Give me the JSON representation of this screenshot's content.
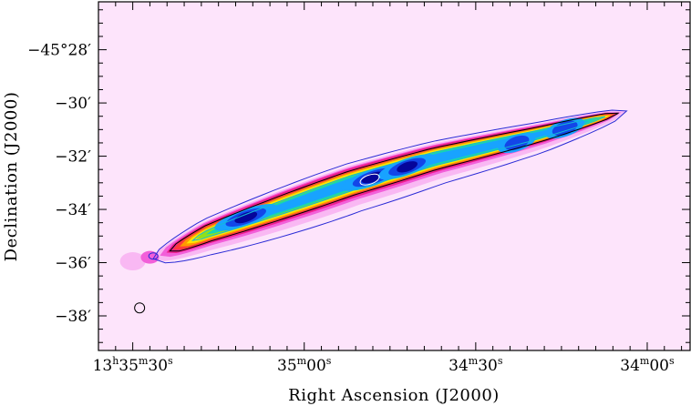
{
  "chart_data": {
    "type": "heatmap",
    "xlabel": "Right Ascension (J2000)",
    "ylabel": "Declination (J2000)",
    "x_ticks": [
      {
        "h": "13",
        "m": "35",
        "s": "30",
        "pre": "13",
        "pre_unit": "h",
        "mid": "35",
        "mid_unit": "m",
        "sec": "30",
        "sec_unit": "s"
      },
      {
        "m": "35",
        "s": "00",
        "pre": "",
        "pre_unit": "",
        "mid": "35",
        "mid_unit": "m",
        "sec": "00",
        "sec_unit": "s"
      },
      {
        "m": "34",
        "s": "30",
        "pre": "",
        "pre_unit": "",
        "mid": "34",
        "mid_unit": "m",
        "sec": "30",
        "sec_unit": "s"
      },
      {
        "m": "34",
        "s": "00",
        "pre": "",
        "pre_unit": "",
        "mid": "34",
        "mid_unit": "m",
        "sec": "00",
        "sec_unit": "s"
      }
    ],
    "y_ticks": [
      "−45°28′",
      "−30′",
      "−32′",
      "−34′",
      "−36′",
      "−38′"
    ],
    "ra_ticks_seconds": [
      35.5,
      35.0,
      34.5,
      34.0
    ],
    "dec_ticks_arcmin": [
      -28,
      -30,
      -32,
      -34,
      -36,
      -38
    ],
    "ra_range_seconds": [
      35.6,
      33.875
    ],
    "dec_range_arcmin": [
      -26.2,
      -39.3
    ],
    "source_ridge": [
      {
        "ra": 35.44,
        "dec": -35.85
      },
      {
        "ra": 35.28,
        "dec": -34.9
      },
      {
        "ra": 35.06,
        "dec": -33.9
      },
      {
        "ra": 34.86,
        "dec": -33.0
      },
      {
        "ra": 34.62,
        "dec": -32.1
      },
      {
        "ra": 34.32,
        "dec": -31.2
      },
      {
        "ra": 34.06,
        "dec": -30.3
      }
    ],
    "intensity_peaks": [
      {
        "ra": 35.17,
        "dec": -34.3,
        "level": 1.0
      },
      {
        "ra": 34.8,
        "dec": -32.8,
        "level": 1.0
      },
      {
        "ra": 34.7,
        "dec": -32.4,
        "level": 0.92
      },
      {
        "ra": 34.38,
        "dec": -31.5,
        "level": 0.6
      },
      {
        "ra": 34.24,
        "dec": -30.95,
        "level": 0.62
      }
    ],
    "beam": {
      "ra": 35.48,
      "dec": -37.7
    },
    "colormap": [
      "#fce6fb",
      "#f9b8f3",
      "#f25fd9",
      "#ee1f8e",
      "#ff3b3b",
      "#ff9a00",
      "#ffe600",
      "#8ee21b",
      "#16d6b0",
      "#18a3ff",
      "#1346e8",
      "#05059a"
    ],
    "background_color": "#fde4fb",
    "contour_colors": [
      "#2b2bd6",
      "#000000",
      "#14b8d4",
      "#ffffff"
    ]
  }
}
